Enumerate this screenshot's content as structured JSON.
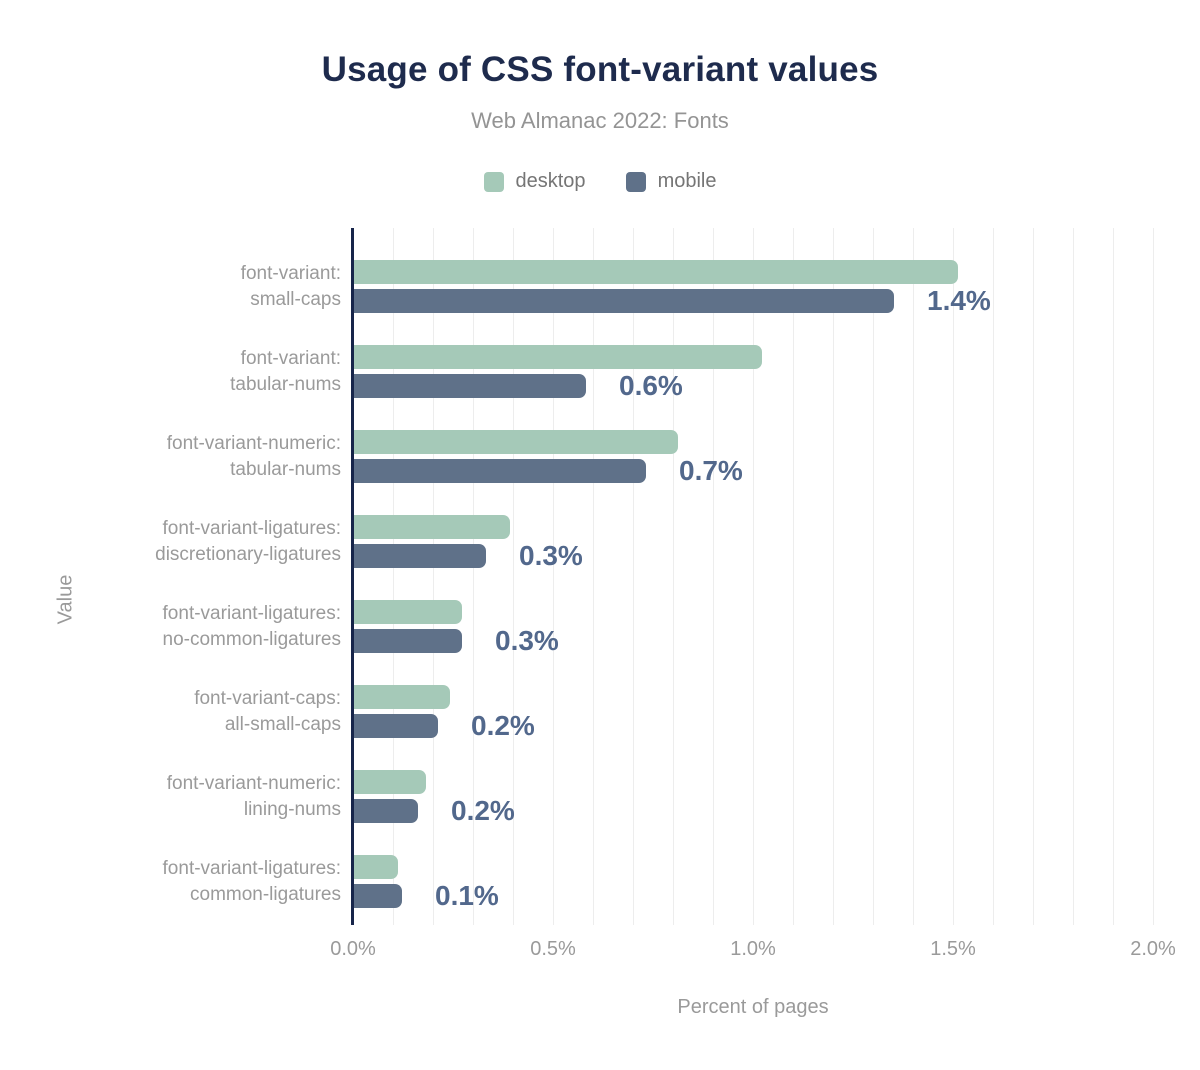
{
  "header": {
    "title": "Usage of CSS font-variant values",
    "subtitle": "Web Almanac 2022: Fonts"
  },
  "legend": {
    "items": [
      {
        "label": "desktop",
        "color": "#a5c9b8"
      },
      {
        "label": "mobile",
        "color": "#5f7189"
      }
    ]
  },
  "colors": {
    "background": "#ffffff",
    "title": "#1e2b4d",
    "muted_text": "#9a9a9a",
    "legend_text": "#757575",
    "axis_line": "#17254a",
    "gridline": "#ededed",
    "desktop_bar": "#a5c9b8",
    "mobile_bar": "#5f7189",
    "value_label": "#52688c"
  },
  "chart_data": {
    "type": "bar",
    "orientation": "horizontal",
    "title": "Usage of CSS font-variant values",
    "subtitle": "Web Almanac 2022: Fonts",
    "xlabel": "Percent of pages",
    "ylabel": "Value",
    "xlim": [
      0,
      2.0
    ],
    "xticks": [
      "0.0%",
      "0.5%",
      "1.0%",
      "1.5%",
      "2.0%"
    ],
    "grid": "vertical, minor gridlines every 0.1%",
    "legend_position": "top",
    "categories": [
      {
        "line1": "font-variant:",
        "line2": "small-caps"
      },
      {
        "line1": "font-variant:",
        "line2": "tabular-nums"
      },
      {
        "line1": "font-variant-numeric:",
        "line2": "tabular-nums"
      },
      {
        "line1": "font-variant-ligatures:",
        "line2": "discretionary-ligatures"
      },
      {
        "line1": "font-variant-ligatures:",
        "line2": "no-common-ligatures"
      },
      {
        "line1": "font-variant-caps:",
        "line2": "all-small-caps"
      },
      {
        "line1": "font-variant-numeric:",
        "line2": "lining-nums"
      },
      {
        "line1": "font-variant-ligatures:",
        "line2": "common-ligatures"
      }
    ],
    "series": [
      {
        "name": "desktop",
        "values": [
          1.51,
          1.02,
          0.81,
          0.39,
          0.27,
          0.24,
          0.18,
          0.11
        ]
      },
      {
        "name": "mobile",
        "values": [
          1.35,
          0.58,
          0.73,
          0.33,
          0.27,
          0.21,
          0.16,
          0.12
        ]
      }
    ],
    "value_labels": [
      "1.4%",
      "0.6%",
      "0.7%",
      "0.3%",
      "0.3%",
      "0.2%",
      "0.2%",
      "0.1%"
    ],
    "value_label_series": "mobile"
  }
}
